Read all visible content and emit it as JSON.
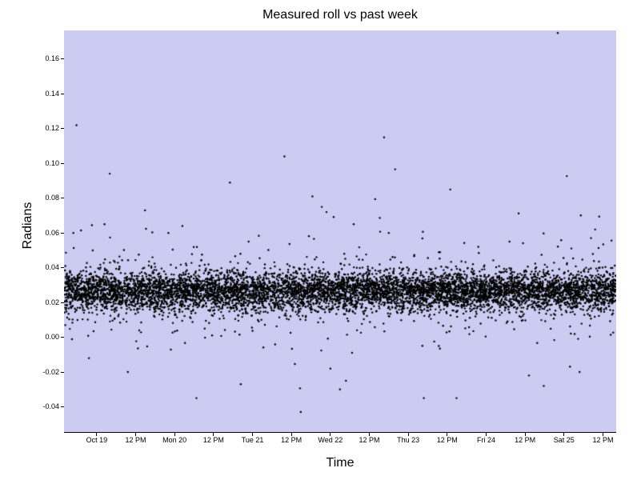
{
  "chart_data": {
    "type": "scatter",
    "title": "Measured roll vs past week",
    "xlabel": "Time",
    "ylabel": "Radians",
    "plot_bg": "#ccccf2",
    "marker_color": "#000000",
    "marker_radius": 1.2,
    "grid": false,
    "legend": null,
    "xlim_days": [
      -0.42,
      6.67
    ],
    "ylim": [
      -0.0545,
      0.1765
    ],
    "x_tick_days": [
      0,
      0.5,
      1,
      1.5,
      2,
      2.5,
      3,
      3.5,
      4,
      4.5,
      5,
      5.5,
      6,
      6.5
    ],
    "x_tick_labels": [
      "Oct 19",
      "12 PM",
      "Mon 20",
      "12 PM",
      "Tue 21",
      "12 PM",
      "Wed 22",
      "12 PM",
      "Thu 23",
      "12 PM",
      "Fri 24",
      "12 PM",
      "Sat 25",
      "12 PM"
    ],
    "y_tick_values": [
      0.16,
      0.14,
      0.12,
      0.1,
      0.08,
      0.06,
      0.04,
      0.02,
      0.0,
      -0.02,
      -0.04
    ],
    "y_tick_labels": [
      "0.16",
      "0.14",
      "0.12",
      "0.10",
      "0.08",
      "0.06",
      "0.04",
      "0.02",
      "0.00",
      "-0.02",
      "-0.04"
    ],
    "cloud": {
      "n": 7500,
      "mean": 0.0265,
      "std": 0.0055,
      "tail_fraction": 0.1,
      "tail_std": 0.012,
      "wide_fraction": 0.012,
      "wide_std": 0.028,
      "seed": 1337
    },
    "outliers": [
      [
        -0.3,
        0.06
      ],
      [
        -0.26,
        0.122
      ],
      [
        -0.1,
        -0.012
      ],
      [
        0.1,
        0.065
      ],
      [
        0.4,
        -0.02
      ],
      [
        0.62,
        0.073
      ],
      [
        0.92,
        0.06
      ],
      [
        1.1,
        0.064
      ],
      [
        1.28,
        -0.035
      ],
      [
        1.71,
        0.089
      ],
      [
        1.85,
        -0.027
      ],
      [
        1.95,
        0.055
      ],
      [
        2.41,
        0.104
      ],
      [
        2.62,
        -0.043
      ],
      [
        2.77,
        0.081
      ],
      [
        2.89,
        0.075
      ],
      [
        2.95,
        0.072
      ],
      [
        3.0,
        -0.018
      ],
      [
        3.2,
        -0.025
      ],
      [
        3.3,
        0.065
      ],
      [
        3.69,
        0.115
      ],
      [
        3.75,
        0.06
      ],
      [
        4.2,
        -0.035
      ],
      [
        4.54,
        0.085
      ],
      [
        4.62,
        -0.035
      ],
      [
        4.9,
        0.052
      ],
      [
        5.3,
        0.055
      ],
      [
        5.55,
        -0.022
      ],
      [
        5.74,
        -0.028
      ],
      [
        5.92,
        0.175
      ],
      [
        6.2,
        -0.02
      ],
      [
        6.4,
        0.062
      ]
    ]
  }
}
